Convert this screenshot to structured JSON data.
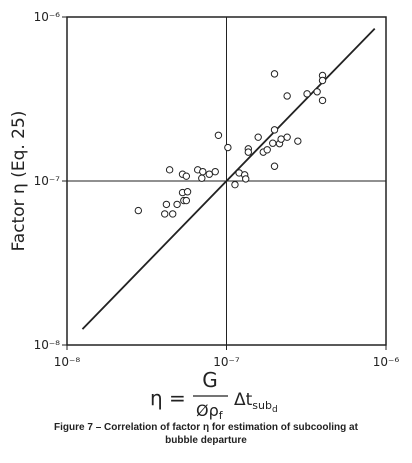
{
  "chart_data": {
    "type": "scatter",
    "y_label": "Factor η  (Eq. 25)",
    "x_label": {
      "eta": "η =",
      "numerator": "G",
      "denominator": "Øρ",
      "denominator_sub": "f",
      "delta": "Δt",
      "sub": "sub",
      "subsub": "d"
    },
    "caption": [
      "Figure 7 – Correlation of factor η for estimation of subcooling at",
      "bubble departure"
    ],
    "log_x": true,
    "log_y": true,
    "grid": true,
    "xlim": [
      1e-08,
      1e-06
    ],
    "ylim": [
      1e-08,
      1e-06
    ],
    "xticks": [
      {
        "value": 1e-08,
        "label": "10⁻⁸"
      },
      {
        "value": 1e-07,
        "label": "10⁻⁷"
      },
      {
        "value": 1e-06,
        "label": "10⁻⁶"
      }
    ],
    "yticks": [
      {
        "value": 1e-08,
        "label": "10⁻⁸"
      },
      {
        "value": 1e-07,
        "label": "10⁻⁷"
      },
      {
        "value": 1e-06,
        "label": "10⁻⁶"
      }
    ],
    "points": {
      "color": "#222",
      "x": [
        2.8e-08,
        4.1e-08,
        4.2e-08,
        4.6e-08,
        4.9e-08,
        5.4e-08,
        5.6e-08,
        5.3e-08,
        5.7e-08,
        5.3e-08,
        5.6e-08,
        4.4e-08,
        6.6e-08,
        7.1e-08,
        7.8e-08,
        8.5e-08,
        7e-08,
        8.9e-08,
        1.02e-07,
        1.13e-07,
        1.2e-07,
        1.3e-07,
        1.32e-07,
        1.37e-07,
        1.37e-07,
        1.58e-07,
        1.7e-07,
        1.8e-07,
        2e-07,
        1.95e-07,
        2.15e-07,
        2.2e-07,
        2.4e-07,
        2e-07,
        2.8e-07,
        2.4e-07,
        2e-07,
        3.2e-07,
        3.7e-07,
        4e-07,
        4e-07,
        4e-07
      ],
      "values": [
        6.6e-08,
        6.3e-08,
        7.2e-08,
        6.3e-08,
        7.2e-08,
        7.6e-08,
        7.6e-08,
        8.5e-08,
        8.6e-08,
        1.1e-07,
        1.07e-07,
        1.17e-07,
        1.17e-07,
        1.14e-07,
        1.1e-07,
        1.14e-07,
        1.04e-07,
        1.9e-07,
        1.6e-07,
        9.5e-08,
        1.12e-07,
        1.09e-07,
        1.03e-07,
        1.57e-07,
        1.5e-07,
        1.85e-07,
        1.5e-07,
        1.55e-07,
        2.05e-07,
        1.7e-07,
        1.69e-07,
        1.8e-07,
        1.85e-07,
        1.23e-07,
        1.75e-07,
        3.3e-07,
        4.5e-07,
        3.4e-07,
        3.5e-07,
        3.1e-07,
        4.4e-07,
        4.1e-07
      ]
    },
    "fit_line": {
      "color": "#222",
      "x": [
        1.25e-08,
        8.5e-07
      ],
      "values": [
        1.25e-08,
        8.5e-07
      ]
    }
  }
}
